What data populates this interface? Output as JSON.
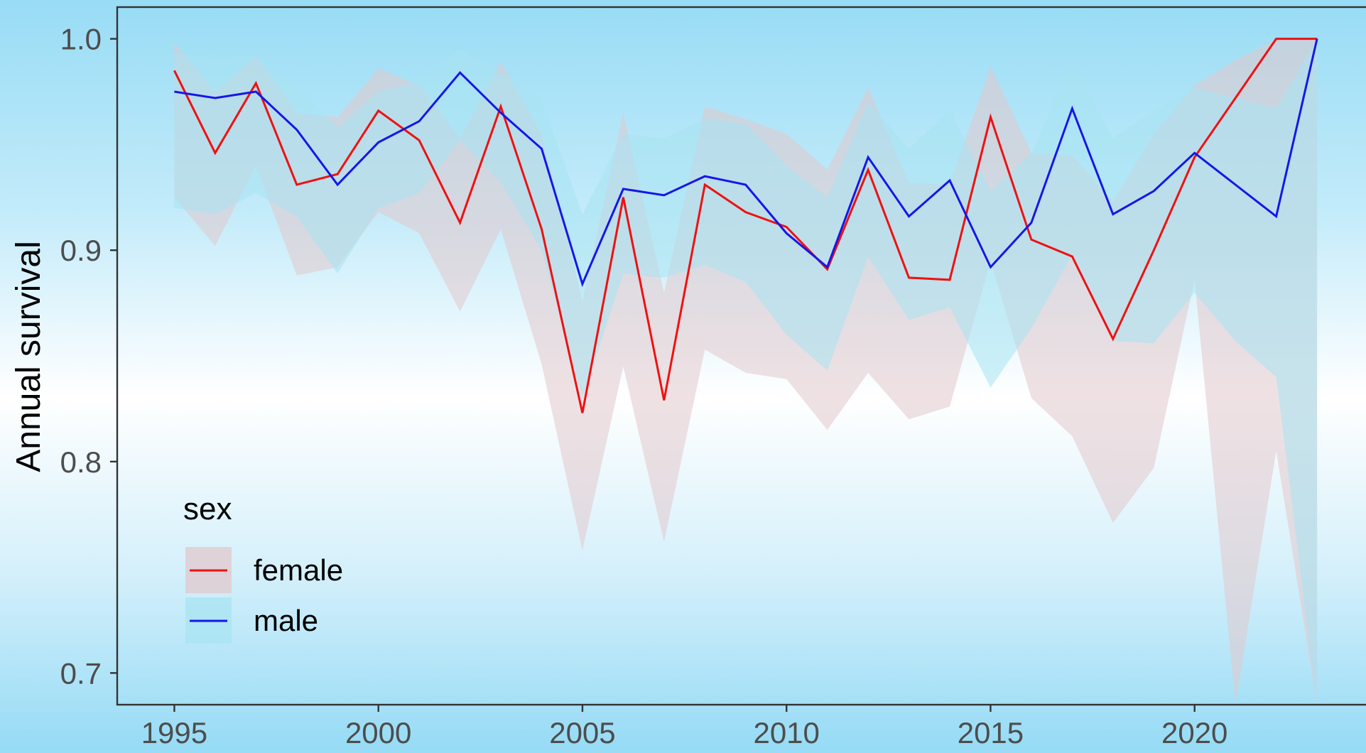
{
  "chart_data": {
    "type": "line",
    "title": "",
    "xlabel": "",
    "ylabel": "Annual survival",
    "xlim": [
      1993.6,
      2024.2
    ],
    "ylim": [
      0.685,
      1.015
    ],
    "x_ticks": [
      1995,
      2000,
      2005,
      2010,
      2015,
      2020
    ],
    "y_ticks": [
      0.7,
      0.8,
      0.9,
      1.0
    ],
    "x_tick_labels": [
      "1995",
      "2000",
      "2005",
      "2010",
      "2015",
      "2020"
    ],
    "y_tick_labels": [
      "0.7",
      "0.8",
      "0.9",
      "1.0"
    ],
    "grid": false,
    "legend": {
      "title": "sex",
      "position": "bottom-left"
    },
    "x": [
      1995,
      1996,
      1997,
      1998,
      1999,
      2000,
      2001,
      2002,
      2003,
      2004,
      2005,
      2006,
      2007,
      2008,
      2009,
      2010,
      2011,
      2012,
      2013,
      2014,
      2015,
      2016,
      2017,
      2018,
      2019,
      2020,
      2021,
      2022,
      2023
    ],
    "series": [
      {
        "name": "female",
        "line_color": "#ee1111",
        "ribbon_color": "#e2c8cc",
        "values": [
          0.985,
          0.946,
          0.979,
          0.931,
          0.936,
          0.966,
          0.952,
          0.913,
          0.968,
          0.91,
          0.823,
          0.925,
          0.829,
          0.931,
          0.918,
          0.911,
          0.891,
          0.938,
          0.887,
          0.886,
          0.963,
          0.905,
          0.897,
          0.858,
          0.9,
          0.944,
          0.972,
          1.0,
          1.0
        ],
        "lower": [
          0.925,
          0.902,
          0.94,
          0.888,
          0.892,
          0.918,
          0.908,
          0.871,
          0.91,
          0.846,
          0.758,
          0.845,
          0.762,
          0.853,
          0.842,
          0.839,
          0.815,
          0.842,
          0.82,
          0.826,
          0.895,
          0.83,
          0.812,
          0.771,
          0.797,
          0.886,
          0.63,
          0.805,
          0.6
        ],
        "upper": [
          0.998,
          0.975,
          0.992,
          0.965,
          0.963,
          0.986,
          0.978,
          0.953,
          0.989,
          0.955,
          0.876,
          0.965,
          0.88,
          0.968,
          0.962,
          0.955,
          0.938,
          0.977,
          0.932,
          0.931,
          0.987,
          0.946,
          0.945,
          0.923,
          0.955,
          0.978,
          0.99,
          1.0,
          1.0
        ]
      },
      {
        "name": "male",
        "line_color": "#1616e8",
        "ribbon_color": "#a8e4f2",
        "values": [
          0.975,
          0.972,
          0.975,
          0.957,
          0.931,
          0.951,
          0.961,
          0.984,
          0.965,
          0.948,
          0.884,
          0.929,
          0.926,
          0.935,
          0.931,
          0.908,
          0.892,
          0.944,
          0.916,
          0.933,
          0.892,
          0.913,
          0.967,
          0.917,
          0.928,
          0.946,
          0.931,
          0.916,
          1.0
        ],
        "lower": [
          0.92,
          0.917,
          0.927,
          0.916,
          0.889,
          0.92,
          0.927,
          0.952,
          0.932,
          0.9,
          0.83,
          0.889,
          0.887,
          0.893,
          0.885,
          0.86,
          0.843,
          0.897,
          0.867,
          0.873,
          0.835,
          0.863,
          0.898,
          0.857,
          0.856,
          0.88,
          0.857,
          0.84,
          0.6
        ],
        "upper": [
          0.993,
          0.991,
          0.992,
          0.978,
          0.958,
          0.975,
          0.98,
          0.995,
          0.984,
          0.971,
          0.917,
          0.955,
          0.953,
          0.962,
          0.96,
          0.94,
          0.925,
          0.97,
          0.948,
          0.966,
          0.928,
          0.946,
          0.989,
          0.953,
          0.966,
          0.977,
          0.972,
          0.967,
          1.0
        ]
      }
    ]
  }
}
